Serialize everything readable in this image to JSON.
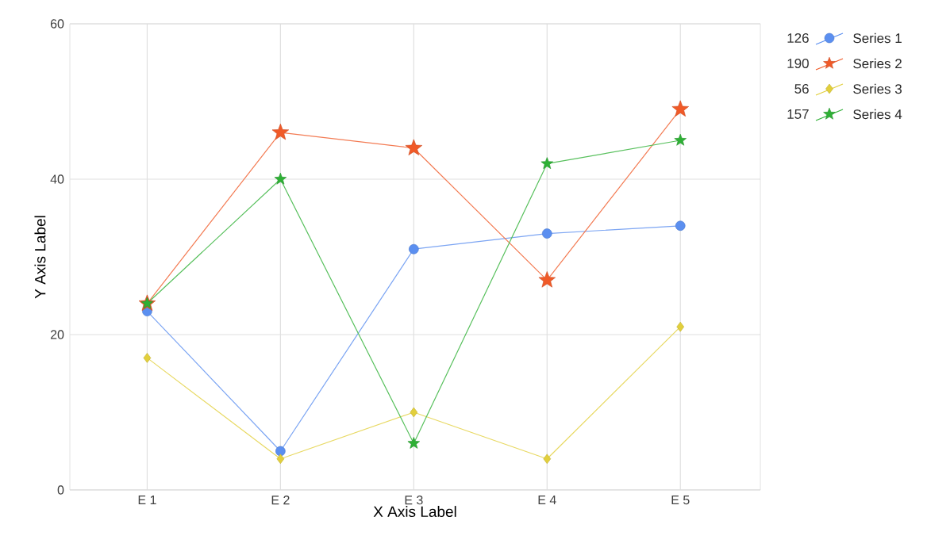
{
  "chart_data": {
    "type": "line",
    "xlabel": "X Axis Label",
    "ylabel": "Y Axis Label",
    "categories": [
      "E 1",
      "E 2",
      "E 3",
      "E 4",
      "E 5"
    ],
    "series": [
      {
        "name": "Series 1",
        "color": "#5b8ff0",
        "marker": "circle",
        "values": [
          23,
          5,
          31,
          33,
          34
        ]
      },
      {
        "name": "Series 2",
        "color": "#f05a28",
        "marker": "star",
        "values": [
          24,
          46,
          44,
          27,
          49
        ]
      },
      {
        "name": "Series 3",
        "color": "#e2cf3c",
        "marker": "diamond",
        "values": [
          17,
          4,
          10,
          4,
          21
        ]
      },
      {
        "name": "Series 4",
        "color": "#2eb035",
        "marker": "star",
        "values": [
          24,
          40,
          6,
          42,
          45
        ]
      }
    ],
    "annotations": [
      "126",
      "190",
      "56",
      "157"
    ],
    "ylim": [
      0,
      60
    ],
    "yticks": [
      0,
      20,
      40,
      60
    ],
    "grid": true,
    "legend": "top right"
  }
}
